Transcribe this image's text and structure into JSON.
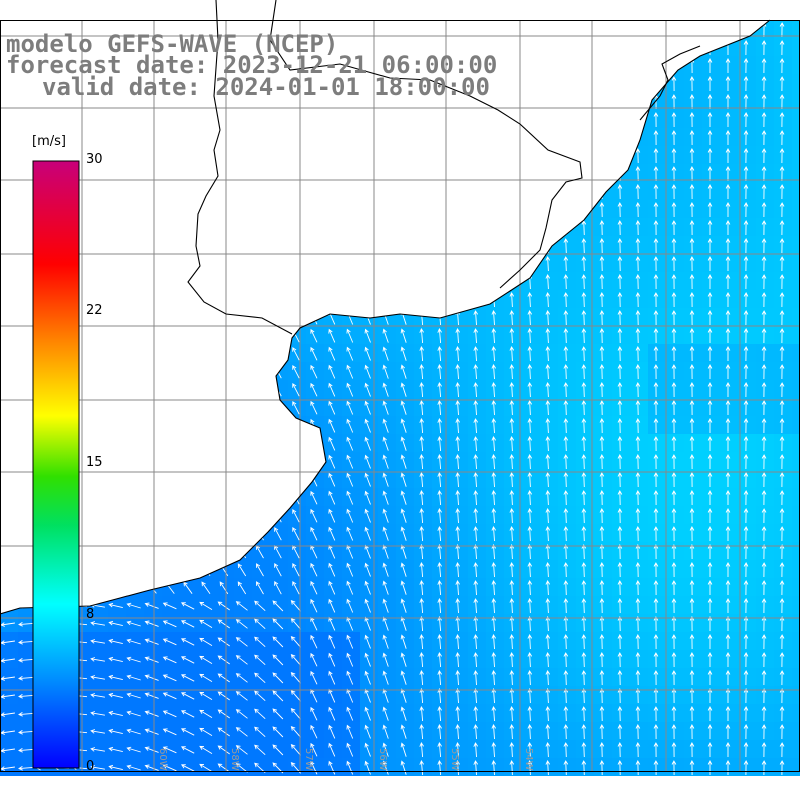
{
  "title": {
    "line1": "modelo GEFS-WAVE (NCEP)",
    "line2": "forecast date: 2023-12-21 06:00:00",
    "line3": "valid date: 2024-01-01 18:00:00"
  },
  "colorbar": {
    "unit": "[m/s]",
    "ticks": [
      "30",
      "22",
      "15",
      "8",
      "0"
    ],
    "tick_values": [
      30,
      22,
      15,
      8,
      0
    ],
    "range": [
      0,
      30
    ],
    "colors": [
      "#0000ff",
      "#00aaff",
      "#00ffff",
      "#00e000",
      "#ffff00",
      "#ff8800",
      "#ff0000",
      "#c8007a"
    ]
  },
  "map": {
    "land_color": "#ffffff",
    "coastline_color": "#000000",
    "grid_color": "#888888",
    "arrow_color": "#ffffff",
    "longitude_labels": [
      "60W",
      "58W",
      "57W",
      "56W",
      "55W",
      "54W"
    ]
  }
}
